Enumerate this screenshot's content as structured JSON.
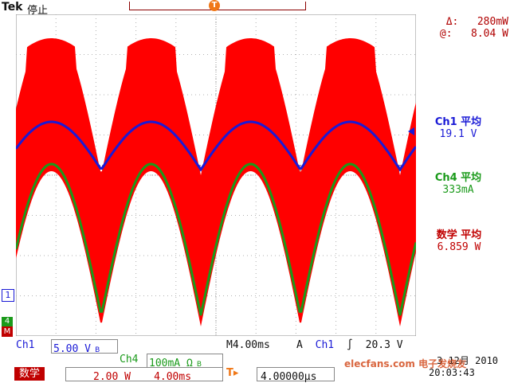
{
  "header": {
    "brand": "Tek",
    "run_state": "停止",
    "trigger_position_marker": "T",
    "trigger_marker": "T"
  },
  "cursor": {
    "delta_label": "Δ:",
    "delta_value": "280mW",
    "at_label": "@:",
    "at_value": "8.04 W"
  },
  "measurements": {
    "ch1_title": "Ch1 平均",
    "ch1_value": "19.1 V",
    "ch4_title": "Ch4 平均",
    "ch4_value": "333mA",
    "math_title": "数学 平均",
    "math_value": "6.859 W"
  },
  "markers": {
    "ch1": "1",
    "ch4": "4",
    "math": "M"
  },
  "status": {
    "ch1_label": "Ch1",
    "ch1_scale": "5.00 V",
    "ch1_bw": "B",
    "ch4_label": "Ch4",
    "ch4_scale": "100mA Ω",
    "ch4_bw": "B",
    "timebase_label": "M",
    "timebase": "4.00ms",
    "trigger_mode": "A",
    "trigger_source": "Ch1",
    "trigger_slope": "∫",
    "trigger_level": "20.3 V",
    "math_label": "数学",
    "math_scale": "2.00 W",
    "math_timebase": "4.00ms",
    "trigger_offset_icon": "T▸",
    "trigger_offset": "4.00000µs",
    "date": "3 12月 2010",
    "time": "20:03:43",
    "watermark": "elecfans.com 电子发烧友"
  },
  "colors": {
    "ch1": "#1a1ad6",
    "ch4": "#1a9a1a",
    "math": "#c00000",
    "math_fill": "#ff0000",
    "ch4_fill": "#b8f0b0"
  }
}
